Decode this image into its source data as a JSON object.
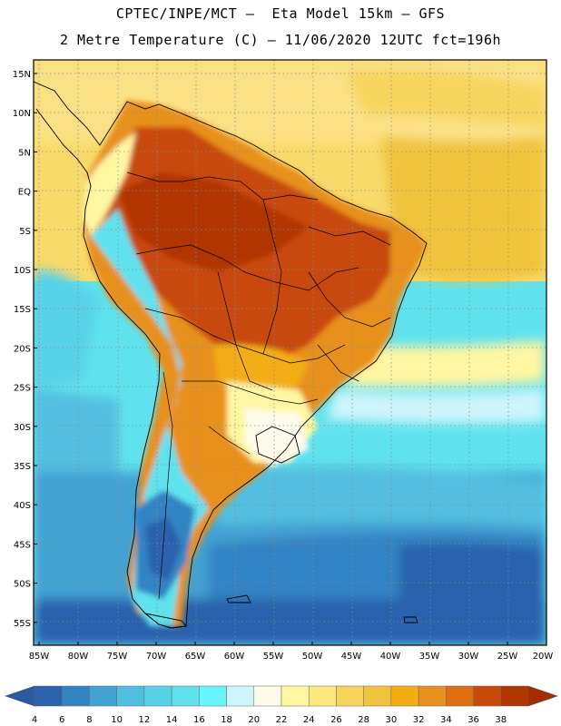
{
  "header": {
    "line1": "CPTEC/INPE/MCT –  Eta Model 15km – GFS",
    "line2": "2 Metre Temperature (C) – 11/06/2020 12UTC fct=196h"
  },
  "map": {
    "region": "South America",
    "variable": "2 Metre Temperature",
    "units": "C",
    "lon_range": [
      -85,
      -20
    ],
    "lat_range": [
      -57,
      17
    ],
    "lat_ticks": [
      {
        "label": "15N",
        "lat": 15
      },
      {
        "label": "10N",
        "lat": 10
      },
      {
        "label": "5N",
        "lat": 5
      },
      {
        "label": "EQ",
        "lat": 0
      },
      {
        "label": "5S",
        "lat": -5
      },
      {
        "label": "10S",
        "lat": -10
      },
      {
        "label": "15S",
        "lat": -15
      },
      {
        "label": "20S",
        "lat": -20
      },
      {
        "label": "25S",
        "lat": -25
      },
      {
        "label": "30S",
        "lat": -30
      },
      {
        "label": "35S",
        "lat": -35
      },
      {
        "label": "40S",
        "lat": -40
      },
      {
        "label": "45S",
        "lat": -45
      },
      {
        "label": "50S",
        "lat": -50
      },
      {
        "label": "55S",
        "lat": -55
      }
    ],
    "lon_ticks": [
      {
        "label": "85W",
        "lon": -85
      },
      {
        "label": "80W",
        "lon": -80
      },
      {
        "label": "75W",
        "lon": -75
      },
      {
        "label": "70W",
        "lon": -70
      },
      {
        "label": "65W",
        "lon": -65
      },
      {
        "label": "60W",
        "lon": -60
      },
      {
        "label": "55W",
        "lon": -55
      },
      {
        "label": "50W",
        "lon": -50
      },
      {
        "label": "45W",
        "lon": -45
      },
      {
        "label": "40W",
        "lon": -40
      },
      {
        "label": "35W",
        "lon": -35
      },
      {
        "label": "30W",
        "lon": -30
      },
      {
        "label": "25W",
        "lon": -25
      },
      {
        "label": "20W",
        "lon": -20
      }
    ]
  },
  "colorbar": {
    "labels": [
      "4",
      "6",
      "8",
      "10",
      "12",
      "14",
      "16",
      "18",
      "20",
      "22",
      "24",
      "26",
      "28",
      "30",
      "32",
      "34",
      "36",
      "38"
    ],
    "colors": [
      "#2a62ad",
      "#3383c3",
      "#43a2d2",
      "#52bedf",
      "#59d2e8",
      "#5fe2ee",
      "#66f5fa",
      "#cdf5fb",
      "#fffbea",
      "#fff6a2",
      "#fde880",
      "#f7d45d",
      "#f0c33e",
      "#f3ad12",
      "#e8901e",
      "#df6d14",
      "#c84a0b",
      "#b03600"
    ]
  }
}
